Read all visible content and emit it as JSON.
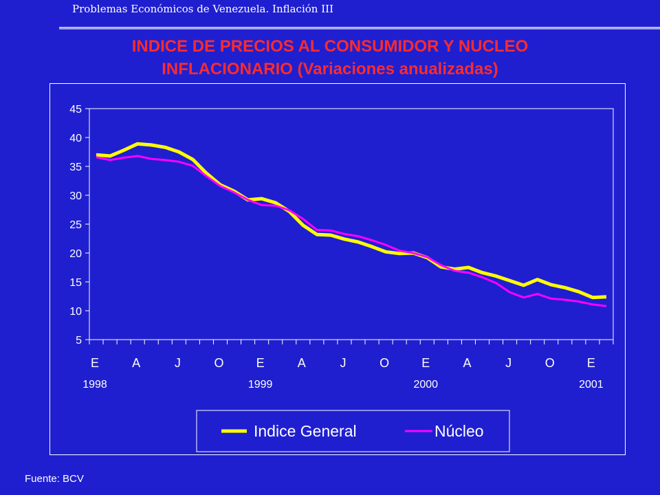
{
  "header": {
    "text": "Problemas Económicos de Venezuela. Inflación III"
  },
  "title": {
    "line1": "INDICE DE PRECIOS AL CONSUMIDOR Y NUCLEO",
    "line2": "INFLACIONARIO (Variaciones anualizadas)"
  },
  "source": "Fuente: BCV",
  "colors": {
    "background": "#1f1fd0",
    "title": "#ff2b2b",
    "indice_general": "#ffff00",
    "nucleo": "#ff00ff"
  },
  "chart_data": {
    "type": "line",
    "title": "",
    "xlabel": "",
    "ylabel": "",
    "ylim": [
      5,
      45
    ],
    "yticks": [
      5,
      10,
      15,
      20,
      25,
      30,
      35,
      40,
      45
    ],
    "x_month_labels": [
      "E",
      "A",
      "J",
      "O",
      "E",
      "A",
      "J",
      "O",
      "E",
      "A",
      "J",
      "O",
      "E"
    ],
    "x_year_labels": [
      "1998",
      "1999",
      "2000",
      "2001"
    ],
    "x": [
      "1998-01",
      "1998-02",
      "1998-03",
      "1998-04",
      "1998-05",
      "1998-06",
      "1998-07",
      "1998-08",
      "1998-09",
      "1998-10",
      "1998-11",
      "1998-12",
      "1999-01",
      "1999-02",
      "1999-03",
      "1999-04",
      "1999-05",
      "1999-06",
      "1999-07",
      "1999-08",
      "1999-09",
      "1999-10",
      "1999-11",
      "1999-12",
      "2000-01",
      "2000-02",
      "2000-03",
      "2000-04",
      "2000-05",
      "2000-06",
      "2000-07",
      "2000-08",
      "2000-09",
      "2000-10",
      "2000-11",
      "2000-12",
      "2001-01",
      "2001-02"
    ],
    "grid": false,
    "legend_position": "bottom",
    "series": [
      {
        "name": "Indice General",
        "values": [
          37.0,
          36.8,
          37.8,
          38.9,
          38.7,
          38.3,
          37.5,
          36.2,
          33.8,
          31.8,
          30.7,
          29.2,
          29.4,
          28.7,
          27.2,
          24.8,
          23.2,
          23.1,
          22.4,
          21.9,
          21.1,
          20.2,
          19.9,
          20.0,
          19.2,
          17.6,
          17.2,
          17.5,
          16.6,
          16.0,
          15.2,
          14.4,
          15.4,
          14.5,
          14.0,
          13.3,
          12.3,
          12.4
        ]
      },
      {
        "name": "Núcleo",
        "values": [
          36.6,
          36.1,
          36.5,
          36.8,
          36.3,
          36.1,
          35.8,
          35.1,
          33.3,
          31.6,
          30.5,
          29.2,
          28.3,
          28.2,
          27.4,
          25.9,
          24.0,
          23.9,
          23.3,
          22.9,
          22.2,
          21.4,
          20.4,
          20.0,
          19.3,
          17.9,
          16.9,
          16.6,
          15.8,
          14.8,
          13.2,
          12.3,
          12.9,
          12.1,
          11.9,
          11.6,
          11.1,
          10.8
        ]
      }
    ]
  }
}
